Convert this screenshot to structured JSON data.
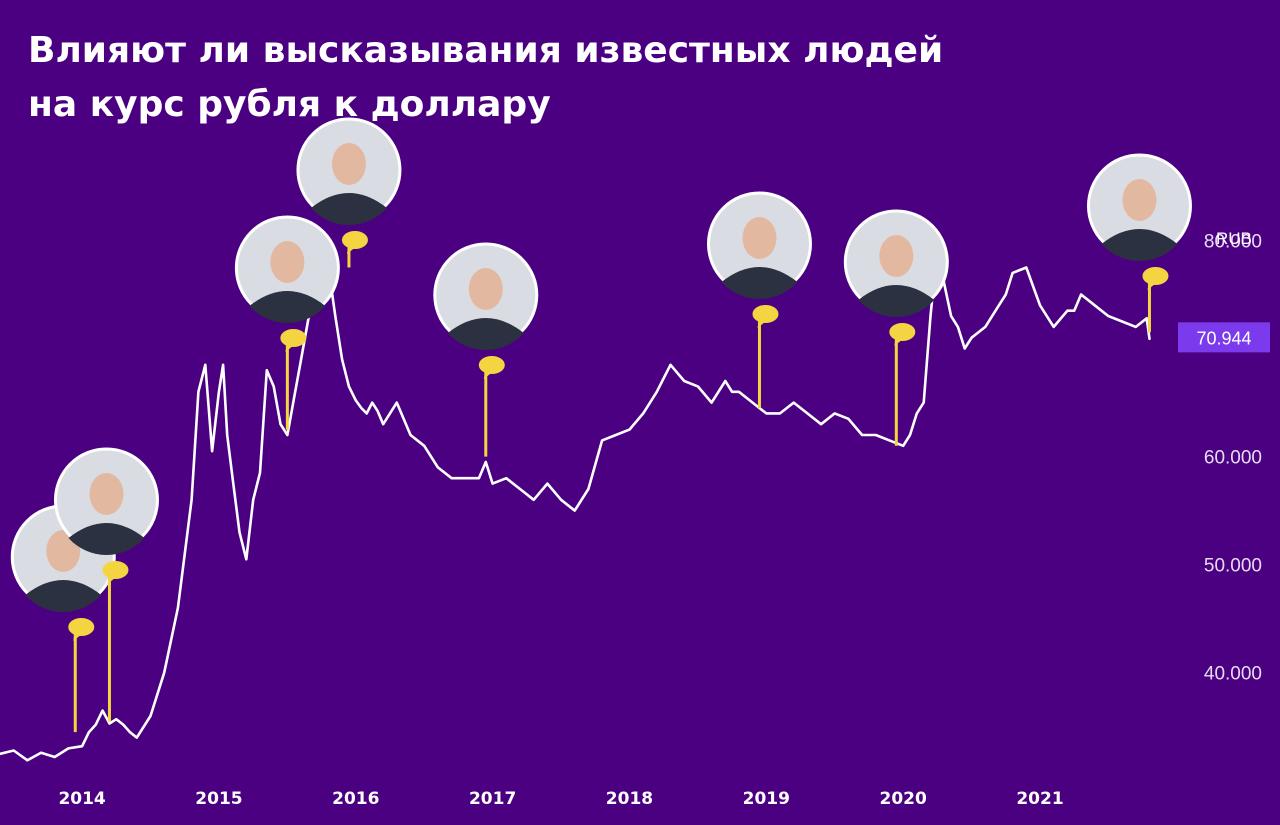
{
  "title_lines": [
    "Влияют ли высказывания известных людей",
    "на курс рубля к доллару"
  ],
  "colors": {
    "background": "#4b0082",
    "line": "#ffffff",
    "marker": "#f5d442",
    "last_value_badge": "#7c3aed",
    "axis_text": "#e6dcf2"
  },
  "chart_data": {
    "type": "line",
    "title": "Влияют ли высказывания известных людей на курс рубля к доллару",
    "xlabel": "",
    "ylabel": "",
    "unit_label": "RUB",
    "x_ticks": [
      "2014",
      "2015",
      "2016",
      "2017",
      "2018",
      "2019",
      "2020",
      "2021"
    ],
    "y_ticks": [
      "40.000",
      "50.000",
      "60.000",
      "80.000"
    ],
    "ylim": [
      31,
      93
    ],
    "xlim": [
      2013.4,
      2021.95
    ],
    "last_value_label": "70.944",
    "last_value": 70.944,
    "series": [
      {
        "x": [
          2013.4,
          2013.5,
          2013.6,
          2013.7,
          2013.8,
          2013.9,
          2014.0,
          2014.05,
          2014.1,
          2014.15,
          2014.2,
          2014.25,
          2014.3,
          2014.35,
          2014.4,
          2014.5,
          2014.6,
          2014.7,
          2014.8,
          2014.85,
          2014.9,
          2014.95,
          2015.0,
          2015.03,
          2015.06,
          2015.1,
          2015.15,
          2015.2,
          2015.25,
          2015.3,
          2015.35,
          2015.4,
          2015.45,
          2015.5,
          2015.55,
          2015.6,
          2015.65,
          2015.7,
          2015.75,
          2015.8,
          2015.85,
          2015.9,
          2015.95,
          2016.0,
          2016.04,
          2016.08,
          2016.12,
          2016.16,
          2016.2,
          2016.3,
          2016.4,
          2016.5,
          2016.6,
          2016.7,
          2016.8,
          2016.9,
          2016.95,
          2017.0,
          2017.1,
          2017.2,
          2017.3,
          2017.4,
          2017.5,
          2017.6,
          2017.7,
          2017.8,
          2017.9,
          2018.0,
          2018.1,
          2018.2,
          2018.3,
          2018.4,
          2018.5,
          2018.6,
          2018.7,
          2018.75,
          2018.8,
          2018.9,
          2019.0,
          2019.1,
          2019.2,
          2019.3,
          2019.4,
          2019.5,
          2019.6,
          2019.7,
          2019.8,
          2019.9,
          2020.0,
          2020.05,
          2020.1,
          2020.15,
          2020.2,
          2020.25,
          2020.3,
          2020.35,
          2020.4,
          2020.45,
          2020.5,
          2020.6,
          2020.7,
          2020.75,
          2020.8,
          2020.9,
          2021.0,
          2021.1,
          2021.2,
          2021.25,
          2021.3,
          2021.4,
          2021.5,
          2021.6,
          2021.7,
          2021.78,
          2021.8
        ],
        "values": [
          32.5,
          32.8,
          31.9,
          32.6,
          32.2,
          33.0,
          33.2,
          34.5,
          35.2,
          36.5,
          35.3,
          35.7,
          35.2,
          34.5,
          34.0,
          36.0,
          40.0,
          46.0,
          56.0,
          66.0,
          68.5,
          60.5,
          66.0,
          68.5,
          62.0,
          58.0,
          53.0,
          50.5,
          56.0,
          58.5,
          68.0,
          66.5,
          63.0,
          62.0,
          65.5,
          69.0,
          72.5,
          76.0,
          79.0,
          77.5,
          73.0,
          69.0,
          66.5,
          65.2,
          64.5,
          64.0,
          65.0,
          64.2,
          63.0,
          65.0,
          62.0,
          61.0,
          59.0,
          58.0,
          58.0,
          58.0,
          59.5,
          57.5,
          58.0,
          57.0,
          56.0,
          57.5,
          56.0,
          55.0,
          57.0,
          61.5,
          62.0,
          62.5,
          64.0,
          66.0,
          68.5,
          67.0,
          66.5,
          65.0,
          67.0,
          66.0,
          66.0,
          65.0,
          64.0,
          64.0,
          65.0,
          64.0,
          63.0,
          64.0,
          63.5,
          62.0,
          62.0,
          61.5,
          61.0,
          62.0,
          64.0,
          65.0,
          73.0,
          79.5,
          76.0,
          73.0,
          72.0,
          70.0,
          71.0,
          72.0,
          74.0,
          75.0,
          77.0,
          77.5,
          74.0,
          72.0,
          73.5,
          73.5,
          75.0,
          74.0,
          73.0,
          72.5,
          72.0,
          72.8,
          70.9
        ]
      }
    ],
    "annotations": [
      {
        "person": "person-1",
        "x": 2013.95,
        "y_base": 34.5
      },
      {
        "person": "person-2",
        "x": 2014.2,
        "y_base": 35.5
      },
      {
        "person": "person-3",
        "x": 2015.5,
        "y_base": 62.5
      },
      {
        "person": "person-4",
        "x": 2015.95,
        "y_base": 77.5
      },
      {
        "person": "person-5",
        "x": 2016.95,
        "y_base": 60.0
      },
      {
        "person": "person-6",
        "x": 2018.95,
        "y_base": 64.5
      },
      {
        "person": "person-7",
        "x": 2019.95,
        "y_base": 61.0
      },
      {
        "person": "person-8",
        "x": 2021.8,
        "y_base": 71.5
      }
    ]
  }
}
